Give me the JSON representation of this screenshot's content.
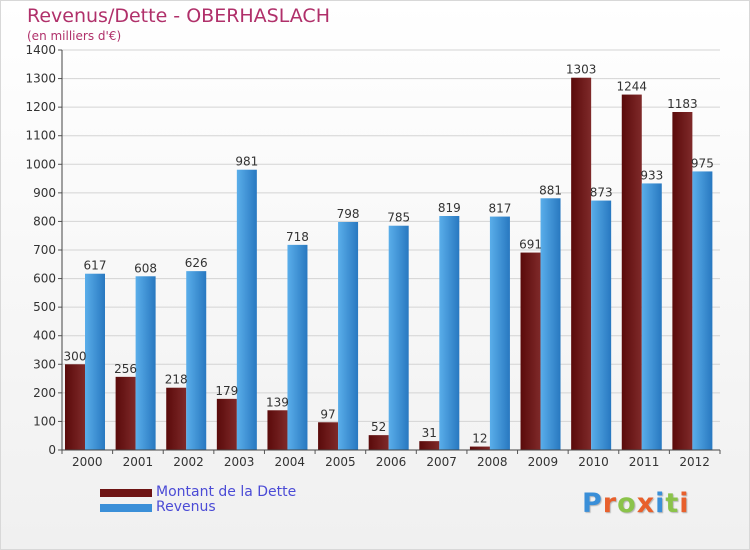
{
  "header": {
    "title": "Revenus/Dette - OBERHASLACH",
    "subtitle": "(en milliers d'€)"
  },
  "legend": {
    "items": [
      {
        "label": "Montant de la Dette",
        "color": "#6e1414"
      },
      {
        "label": "Revenus",
        "color": "#3a8fd8"
      }
    ]
  },
  "logo": {
    "text": "Proxiti",
    "letter_colors": [
      "#3a8fd8",
      "#e8602c",
      "#8bc34a",
      "#e8602c",
      "#3a8fd8",
      "#8bc34a",
      "#e8602c"
    ]
  },
  "chart_data": {
    "type": "bar",
    "categories": [
      "2000",
      "2001",
      "2002",
      "2003",
      "2004",
      "2005",
      "2006",
      "2007",
      "2008",
      "2009",
      "2010",
      "2011",
      "2012"
    ],
    "series": [
      {
        "name": "Montant de la Dette",
        "values": [
          300,
          256,
          218,
          179,
          139,
          97,
          52,
          31,
          12,
          691,
          1303,
          1244,
          1183
        ],
        "colors": {
          "light": "#7f2a2a",
          "dark": "#5a0a0a"
        }
      },
      {
        "name": "Revenus",
        "values": [
          617,
          608,
          626,
          981,
          718,
          798,
          785,
          819,
          817,
          881,
          873,
          933,
          975
        ],
        "colors": {
          "light": "#5aaeea",
          "dark": "#2878c0"
        }
      }
    ],
    "xlabel": "",
    "ylabel": "",
    "ylim": [
      0,
      1400
    ],
    "yticks": [
      0,
      100,
      200,
      300,
      400,
      500,
      600,
      700,
      800,
      900,
      1000,
      1100,
      1200,
      1300,
      1400
    ],
    "grid": true,
    "legend_position": "bottom-left"
  }
}
